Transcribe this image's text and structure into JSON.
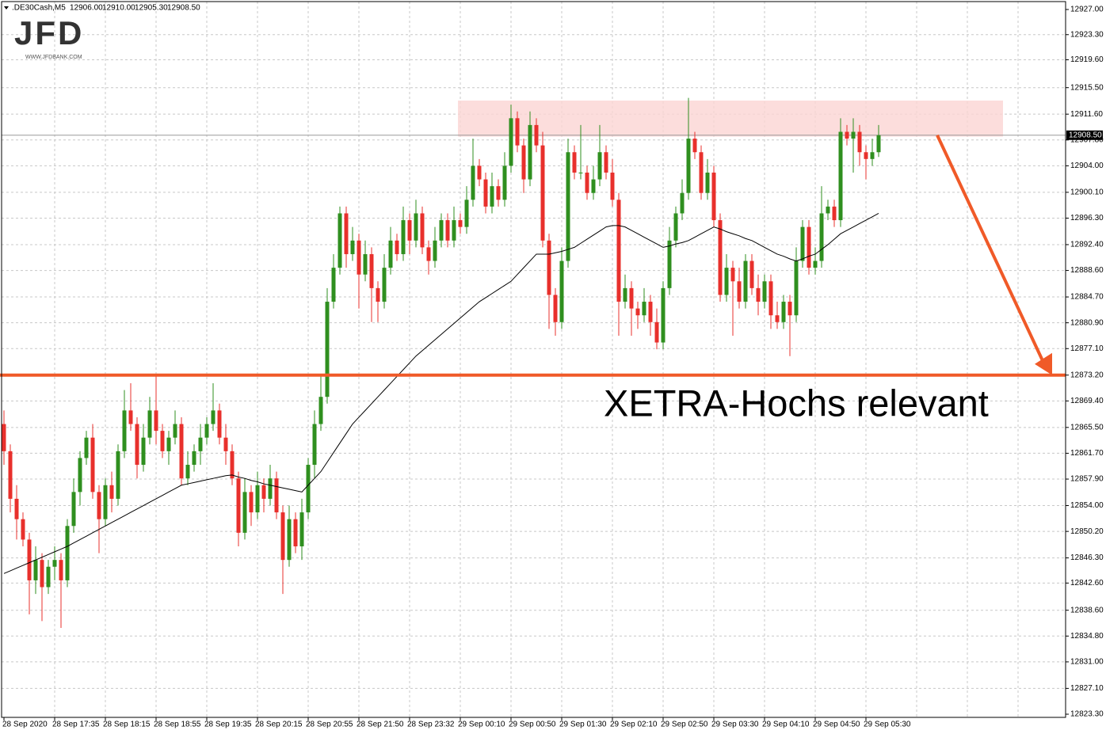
{
  "chart_data": {
    "type": "candlestick",
    "header": {
      "symbol": ".DE30Cash,M5",
      "ohlc": [
        12906,
        12910,
        12905.3,
        12908.5
      ],
      "ohlc_labels": [
        "12906.00",
        "12910.00",
        "12905.30",
        "12908.50"
      ]
    },
    "logo": "JFD",
    "logo_url": "WWW.JFDBANK.COM",
    "annotation": "XETRA-Hochs relevant",
    "level": 12873.2,
    "zone": {
      "low": 12908.3,
      "high": 12913.6
    },
    "current_price": {
      "value": 12908.5,
      "label": "12908.50"
    },
    "up_color": "#2f8f1f",
    "down_color": "#e8302c",
    "ma_color": "#000000",
    "level_color": "#f05a28",
    "zone_color": "#fbd5d3",
    "grid": true,
    "ylim": [
      12823.3,
      12927
    ],
    "yticks": [
      {
        "value": 12927,
        "label": "12927.00"
      },
      {
        "value": 12923.3,
        "label": "12923.30"
      },
      {
        "value": 12919.6,
        "label": "12919.60"
      },
      {
        "value": 12915.5,
        "label": "12915.50"
      },
      {
        "value": 12911.6,
        "label": "12911.60"
      },
      {
        "value": 12907.8,
        "label": "12907.80"
      },
      {
        "value": 12904,
        "label": "12904.00"
      },
      {
        "value": 12900.1,
        "label": "12900.10"
      },
      {
        "value": 12896.3,
        "label": "12896.30"
      },
      {
        "value": 12892.4,
        "label": "12892.40"
      },
      {
        "value": 12888.6,
        "label": "12888.60"
      },
      {
        "value": 12884.7,
        "label": "12884.70"
      },
      {
        "value": 12880.9,
        "label": "12880.90"
      },
      {
        "value": 12877.1,
        "label": "12877.10"
      },
      {
        "value": 12873.2,
        "label": "12873.20"
      },
      {
        "value": 12869.4,
        "label": "12869.40"
      },
      {
        "value": 12865.5,
        "label": "12865.50"
      },
      {
        "value": 12861.7,
        "label": "12861.70"
      },
      {
        "value": 12857.9,
        "label": "12857.90"
      },
      {
        "value": 12854,
        "label": "12854.00"
      },
      {
        "value": 12850.2,
        "label": "12850.20"
      },
      {
        "value": 12846.3,
        "label": "12846.30"
      },
      {
        "value": 12842.6,
        "label": "12842.60"
      },
      {
        "value": 12838.6,
        "label": "12838.60"
      },
      {
        "value": 12834.8,
        "label": "12834.80"
      },
      {
        "value": 12831,
        "label": "12831.00"
      },
      {
        "value": 12827.1,
        "label": "12827.10"
      },
      {
        "value": 12823.3,
        "label": "12823.30"
      }
    ],
    "categories": [
      "28 Sep 2020",
      null,
      null,
      null,
      null,
      null,
      null,
      null,
      "28 Sep 17:35",
      null,
      null,
      null,
      null,
      null,
      null,
      null,
      "28 Sep 18:15",
      null,
      null,
      null,
      null,
      null,
      null,
      null,
      "28 Sep 18:55",
      null,
      null,
      null,
      null,
      null,
      null,
      null,
      "28 Sep 19:35",
      null,
      null,
      null,
      null,
      null,
      null,
      null,
      "28 Sep 20:15",
      null,
      null,
      null,
      null,
      null,
      null,
      null,
      "28 Sep 20:55",
      null,
      null,
      null,
      null,
      null,
      null,
      null,
      "28 Sep 21:50",
      null,
      null,
      null,
      null,
      null,
      null,
      null,
      "28 Sep 23:32",
      null,
      null,
      null,
      null,
      null,
      null,
      null,
      "29 Sep 00:10",
      null,
      null,
      null,
      null,
      null,
      null,
      null,
      "29 Sep 00:50",
      null,
      null,
      null,
      null,
      null,
      null,
      null,
      "29 Sep 01:30",
      null,
      null,
      null,
      null,
      null,
      null,
      null,
      "29 Sep 02:10",
      null,
      null,
      null,
      null,
      null,
      null,
      null,
      "29 Sep 02:50",
      null,
      null,
      null,
      null,
      null,
      null,
      null,
      "29 Sep 03:30",
      null,
      null,
      null,
      null,
      null,
      null,
      null,
      "29 Sep 04:10",
      null,
      null,
      null,
      null,
      null,
      null,
      null,
      "29 Sep 04:50",
      null,
      null,
      null,
      null,
      null,
      null,
      null,
      "29 Sep 05:30",
      null,
      null
    ],
    "open": [
      12866,
      12862,
      12855,
      12852,
      12849,
      12843,
      12846,
      12842,
      12845,
      12846,
      12843,
      12851,
      12856,
      12861,
      12864,
      12856,
      12852,
      12857,
      12855,
      12862,
      12868,
      12866,
      12860,
      12864,
      12868,
      12865,
      12862,
      12864,
      12866,
      12858,
      12860,
      12862,
      12864,
      12866,
      12868,
      12864,
      12862,
      12858,
      12850,
      12856,
      12853,
      12857,
      12855,
      12858,
      12853,
      12846,
      12852,
      12848,
      12853,
      12860,
      12866,
      12870,
      12884,
      12889,
      12897,
      12891,
      12893,
      12888,
      12891,
      12886,
      12884,
      12889,
      12893,
      12891,
      12896,
      12893,
      12897,
      12892,
      12890,
      12893,
      12896,
      12893,
      12896,
      12895,
      12899,
      12904,
      12902,
      12898,
      12901,
      12899,
      12904,
      12911,
      12907,
      12902,
      12910,
      12907,
      12893,
      12885,
      12881,
      12890,
      12906,
      12903,
      12903,
      12900,
      12902,
      12906,
      12903,
      12899,
      12884,
      12886,
      12883,
      12882,
      12884,
      12881,
      12878,
      12886,
      12893,
      12897,
      12900,
      12908,
      12906,
      12900,
      12903,
      12896,
      12885,
      12889,
      12887,
      12884,
      12890,
      12886,
      12884,
      12887,
      12882,
      12881,
      12884,
      12882,
      12890,
      12895,
      12889,
      12890,
      12897,
      12898,
      12896,
      12909,
      12908,
      12909,
      12906,
      12905,
      12906
    ],
    "high": [
      12868,
      12863,
      12857,
      12853,
      12850,
      12848,
      12847,
      12846,
      12848,
      12847,
      12852,
      12858,
      12862,
      12865,
      12866,
      12857,
      12858,
      12859,
      12863,
      12871,
      12872,
      12867,
      12866,
      12870,
      12873,
      12866,
      12865,
      12868,
      12867,
      12862,
      12863,
      12866,
      12867,
      12872,
      12869,
      12866,
      12863,
      12859,
      12858,
      12857,
      12859,
      12858,
      12860,
      12859,
      12854,
      12854,
      12853,
      12855,
      12861,
      12868,
      12873,
      12886,
      12891,
      12898,
      12898,
      12895,
      12894,
      12893,
      12892,
      12887,
      12891,
      12895,
      12894,
      12898,
      12897,
      12899,
      12898,
      12893,
      12895,
      12897,
      12897,
      12898,
      12897,
      12901,
      12908,
      12905,
      12903,
      12903,
      12902,
      12906,
      12913,
      12912,
      12908,
      12912,
      12911,
      12909,
      12894,
      12886,
      12892,
      12908,
      12907,
      12910,
      12904,
      12904,
      12910,
      12907,
      12905,
      12900,
      12888,
      12887,
      12884,
      12886,
      12885,
      12883,
      12887,
      12895,
      12898,
      12902,
      12914,
      12909,
      12907,
      12905,
      12904,
      12897,
      12891,
      12890,
      12889,
      12891,
      12891,
      12888,
      12888,
      12888,
      12884,
      12885,
      12885,
      12892,
      12896,
      12896,
      12892,
      12901,
      12899,
      12899,
      12911,
      12910,
      12911,
      12910,
      12907,
      12908,
      12910
    ],
    "low": [
      12860,
      12853,
      12849,
      12848,
      12838,
      12841,
      12837,
      12841,
      12843,
      12836,
      12842,
      12850,
      12854,
      12860,
      12855,
      12847,
      12851,
      12853,
      12854,
      12861,
      12865,
      12858,
      12859,
      12863,
      12863,
      12861,
      12860,
      12863,
      12857,
      12857,
      12859,
      12860,
      12863,
      12865,
      12863,
      12860,
      12857,
      12848,
      12849,
      12851,
      12852,
      12853,
      12854,
      12852,
      12841,
      12845,
      12847,
      12846,
      12852,
      12858,
      12865,
      12869,
      12883,
      12888,
      12889,
      12890,
      12883,
      12887,
      12881,
      12881,
      12883,
      12888,
      12890,
      12890,
      12891,
      12892,
      12891,
      12888,
      12889,
      12892,
      12892,
      12892,
      12894,
      12894,
      12898,
      12901,
      12897,
      12897,
      12898,
      12898,
      12903,
      12906,
      12900,
      12901,
      12906,
      12892,
      12880,
      12879,
      12880,
      12889,
      12902,
      12902,
      12899,
      12899,
      12901,
      12902,
      12898,
      12879,
      12883,
      12879,
      12880,
      12881,
      12879,
      12877,
      12877,
      12885,
      12892,
      12896,
      12899,
      12905,
      12899,
      12899,
      12895,
      12884,
      12884,
      12879,
      12883,
      12883,
      12885,
      12882,
      12883,
      12880,
      12880,
      12880,
      12876,
      12881,
      12889,
      12888,
      12888,
      12889,
      12896,
      12895,
      12895,
      12907,
      12903,
      12904,
      12902,
      12904,
      12905.3
    ],
    "close": [
      12862,
      12855,
      12852,
      12849,
      12843,
      12846,
      12842,
      12845,
      12846,
      12843,
      12851,
      12856,
      12861,
      12864,
      12856,
      12852,
      12857,
      12855,
      12862,
      12868,
      12866,
      12860,
      12864,
      12868,
      12865,
      12862,
      12864,
      12866,
      12858,
      12860,
      12862,
      12864,
      12866,
      12868,
      12864,
      12862,
      12858,
      12850,
      12856,
      12853,
      12857,
      12855,
      12858,
      12853,
      12846,
      12852,
      12848,
      12853,
      12860,
      12866,
      12870,
      12884,
      12889,
      12897,
      12891,
      12893,
      12888,
      12891,
      12886,
      12884,
      12889,
      12893,
      12891,
      12896,
      12893,
      12897,
      12892,
      12890,
      12893,
      12896,
      12893,
      12896,
      12895,
      12899,
      12904,
      12902,
      12898,
      12901,
      12899,
      12904,
      12911,
      12907,
      12902,
      12910,
      12907,
      12893,
      12885,
      12881,
      12890,
      12906,
      12903,
      12903,
      12900,
      12902,
      12906,
      12903,
      12899,
      12884,
      12886,
      12883,
      12882,
      12884,
      12881,
      12878,
      12886,
      12893,
      12897,
      12900,
      12908,
      12906,
      12900,
      12903,
      12896,
      12885,
      12889,
      12887,
      12884,
      12890,
      12886,
      12884,
      12887,
      12882,
      12881,
      12884,
      12882,
      12890,
      12895,
      12889,
      12890,
      12897,
      12898,
      12896,
      12909,
      12908,
      12909,
      12906,
      12905,
      12906,
      12908.5
    ],
    "ma": [
      12844,
      12844.4,
      12844.8,
      12845.2,
      12845.6,
      12846,
      12846.4,
      12846.8,
      12847.2,
      12847.6,
      12848,
      12848.5,
      12849,
      12849.5,
      12850,
      12850.5,
      12851,
      12851.5,
      12852,
      12852.5,
      12853,
      12853.5,
      12854,
      12854.5,
      12855,
      12855.5,
      12856,
      12856.5,
      12857,
      12857.2,
      12857.4,
      12857.6,
      12857.8,
      12858,
      12858.2,
      12858.4,
      12858.5,
      12858.2,
      12858,
      12857.7,
      12857.5,
      12857.2,
      12857,
      12856.8,
      12856.6,
      12856.4,
      12856.2,
      12856,
      12857,
      12858,
      12859,
      12860.4,
      12861.8,
      12863.2,
      12864.6,
      12866,
      12867,
      12868,
      12869,
      12870,
      12871,
      12872,
      12873,
      12874,
      12875,
      12876,
      12876.8,
      12877.6,
      12878.4,
      12879.2,
      12880,
      12880.8,
      12881.6,
      12882.4,
      12883.2,
      12884,
      12884.6,
      12885.2,
      12885.8,
      12886.4,
      12887,
      12888,
      12889,
      12890,
      12891,
      12891,
      12891,
      12891.2,
      12891.4,
      12891.7,
      12892,
      12892.6,
      12893.2,
      12893.8,
      12894.4,
      12895,
      12895.2,
      12895.2,
      12895,
      12894.5,
      12894,
      12893.5,
      12893,
      12892.5,
      12892,
      12892.2,
      12892.5,
      12892.7,
      12893,
      12893.5,
      12894,
      12894.5,
      12895,
      12894.7,
      12894.3,
      12894,
      12893.7,
      12893.3,
      12893,
      12892.5,
      12892,
      12891.5,
      12891,
      12890.7,
      12890.3,
      12890,
      12890.3,
      12890.7,
      12891,
      12891.7,
      12892.4,
      12893.2,
      12894,
      12894.5,
      12895,
      12895.5,
      12896,
      12896.5,
      12897
    ]
  }
}
